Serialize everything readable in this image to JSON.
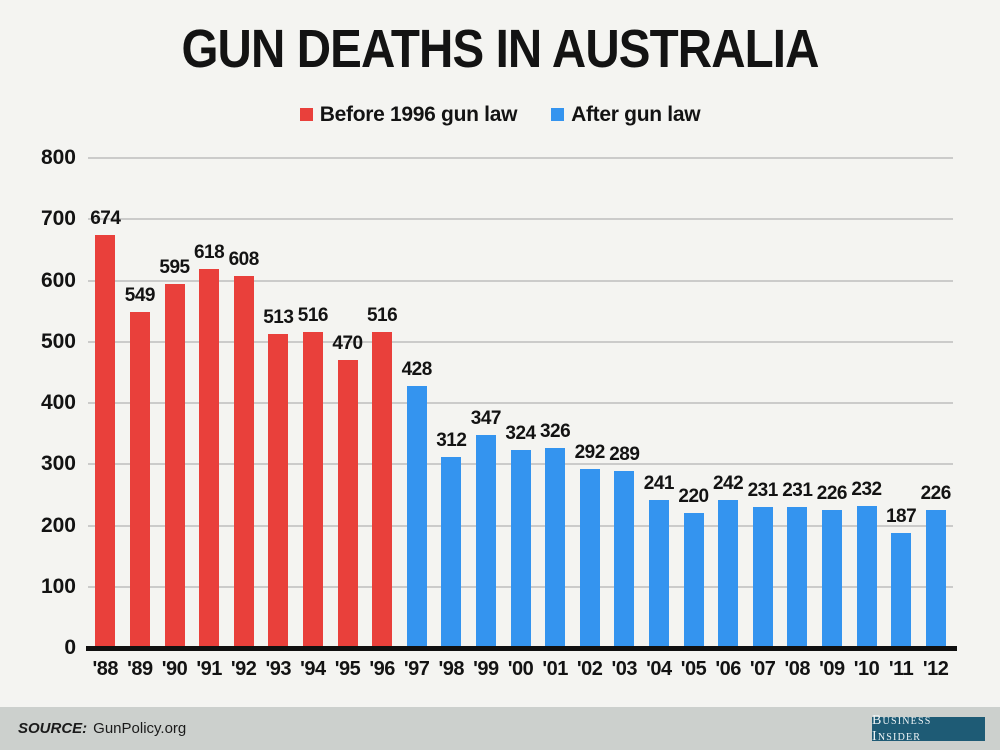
{
  "title": "GUN DEATHS IN AUSTRALIA",
  "legend": [
    {
      "label": "Before 1996 gun law",
      "color": "#e9403b"
    },
    {
      "label": "After gun law",
      "color": "#3494ef"
    }
  ],
  "chart_data": {
    "type": "bar",
    "title": "GUN DEATHS IN AUSTRALIA",
    "categories": [
      "'88",
      "'89",
      "'90",
      "'91",
      "'92",
      "'93",
      "'94",
      "'95",
      "'96",
      "'97",
      "'98",
      "'99",
      "'00",
      "'01",
      "'02",
      "'03",
      "'04",
      "'05",
      "'06",
      "'07",
      "'08",
      "'09",
      "'10",
      "'11",
      "'12"
    ],
    "series": [
      {
        "name": "Before 1996 gun law",
        "color": "#e9403b",
        "x": [
          "'88",
          "'89",
          "'90",
          "'91",
          "'92",
          "'93",
          "'94",
          "'95",
          "'96"
        ],
        "values": [
          674,
          549,
          595,
          618,
          608,
          513,
          516,
          470,
          516
        ]
      },
      {
        "name": "After gun law",
        "color": "#3494ef",
        "x": [
          "'97",
          "'98",
          "'99",
          "'00",
          "'01",
          "'02",
          "'03",
          "'04",
          "'05",
          "'06",
          "'07",
          "'08",
          "'09",
          "'10",
          "'11",
          "'12"
        ],
        "values": [
          428,
          312,
          347,
          324,
          326,
          292,
          289,
          241,
          220,
          242,
          231,
          231,
          226,
          232,
          187,
          226
        ]
      }
    ],
    "ylim": [
      0,
      800
    ],
    "ytick_step": 100,
    "yticks": [
      0,
      100,
      200,
      300,
      400,
      500,
      600,
      700,
      800
    ],
    "grid": true,
    "legend_position": "top",
    "value_labels": true,
    "colors": {
      "grid": "#cbcbca",
      "baseline": "#101010",
      "background": "#f4f4f1"
    }
  },
  "footer": {
    "source_label": "SOURCE:",
    "source_value": "GunPolicy.org",
    "brand": "Business Insider"
  }
}
